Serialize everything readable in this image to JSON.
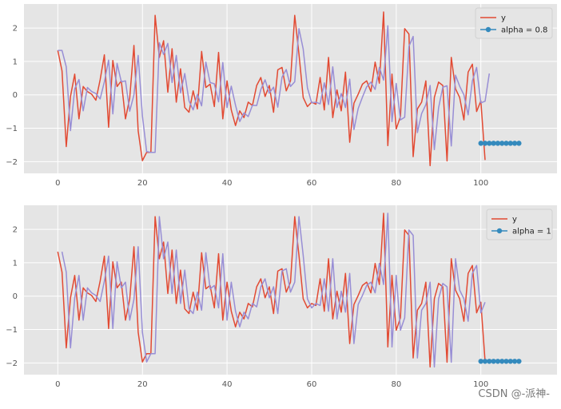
{
  "chart_data": [
    {
      "type": "line",
      "xlim": [
        -8,
        118
      ],
      "ylim": [
        -2.35,
        2.72
      ],
      "xticks": [
        0,
        20,
        40,
        60,
        80,
        100
      ],
      "yticks": [
        -2,
        -1,
        0,
        1,
        2
      ],
      "grid": true,
      "legend_position": "top-right",
      "series": [
        {
          "name": "y",
          "color": "#e24a33",
          "x_start": 0,
          "values": [
            1.33,
            0.72,
            -1.55,
            -0.05,
            0.62,
            -0.72,
            0.25,
            0.1,
            0.02,
            -0.16,
            0.45,
            1.2,
            -0.97,
            1.03,
            0.25,
            0.42,
            -0.72,
            -0.1,
            1.48,
            -1.08,
            -1.97,
            -1.72,
            -1.72,
            2.38,
            1.12,
            1.62,
            0.08,
            1.38,
            -0.22,
            0.78,
            -0.38,
            -0.52,
            0.12,
            -0.42,
            1.3,
            0.22,
            0.32,
            -0.35,
            1.27,
            -0.72,
            0.42,
            -0.45,
            -0.92,
            -0.48,
            -0.68,
            -0.22,
            -0.32,
            0.28,
            0.52,
            -0.05,
            0.28,
            -0.52,
            0.75,
            0.82,
            0.12,
            0.42,
            2.38,
            1.22,
            -0.08,
            -0.35,
            -0.22,
            -0.28,
            0.52,
            -0.45,
            1.12,
            -0.68,
            0.15,
            -0.48,
            0.68,
            -1.42,
            -0.25,
            0.02,
            0.32,
            0.42,
            0.1,
            0.98,
            0.35,
            2.48,
            -1.52,
            0.62,
            -1.02,
            -0.65,
            1.98,
            1.82,
            -1.85,
            -0.42,
            -0.22,
            0.42,
            -2.12,
            -0.08,
            0.38,
            0.28,
            -1.98,
            1.12,
            0.18,
            -0.08,
            -0.75,
            0.68,
            0.92,
            -0.5,
            -0.18,
            -1.95
          ]
        },
        {
          "name": "",
          "color": "#988ed5",
          "x_start": 0,
          "values": [
            1.33,
            1.33,
            0.84,
            -1.07,
            0.18,
            0.46,
            -0.48,
            0.22,
            0.1,
            0.04,
            -0.12,
            0.39,
            1.04,
            -0.57,
            0.94,
            0.39,
            0.42,
            -0.49,
            0.0,
            1.18,
            -0.63,
            -1.7,
            -1.72,
            -1.72,
            1.56,
            1.21,
            1.54,
            0.37,
            1.18,
            0.06,
            0.64,
            -0.18,
            -0.45,
            0.01,
            -0.33,
            0.98,
            0.37,
            0.33,
            -0.21,
            0.97,
            -0.38,
            0.26,
            -0.31,
            -0.8,
            -0.54,
            -0.65,
            -0.31,
            -0.32,
            0.16,
            0.45,
            0.05,
            0.23,
            -0.37,
            0.53,
            0.76,
            0.25,
            0.39,
            1.98,
            1.37,
            0.21,
            -0.24,
            -0.22,
            -0.27,
            0.36,
            -0.29,
            0.84,
            -0.38,
            0.04,
            -0.38,
            0.47,
            -1.04,
            -0.41,
            -0.07,
            0.24,
            0.38,
            0.16,
            0.82,
            0.44,
            2.07,
            -0.8,
            0.34,
            -0.75,
            -0.67,
            1.45,
            1.75,
            -1.13,
            -0.56,
            -0.29,
            0.28,
            -1.64,
            -0.39,
            0.23,
            0.27,
            -1.53,
            0.59,
            0.26,
            0.0,
            -0.6,
            0.42,
            0.82,
            -0.24,
            -0.19,
            0.64
          ]
        },
        {
          "name": "alpha = 0.8",
          "color": "#348abd",
          "x": [
            100,
            101,
            102,
            103,
            104,
            105,
            106,
            107,
            108,
            109
          ],
          "values": [
            -1.45,
            -1.45,
            -1.45,
            -1.45,
            -1.45,
            -1.45,
            -1.45,
            -1.45,
            -1.45,
            -1.45
          ],
          "marker": "circle"
        }
      ],
      "legend": [
        {
          "label": "y",
          "color": "#e24a33",
          "marker": false
        },
        {
          "label": "alpha = 0.8",
          "color": "#348abd",
          "marker": true
        }
      ]
    },
    {
      "type": "line",
      "xlim": [
        -8,
        118
      ],
      "ylim": [
        -2.35,
        2.72
      ],
      "xticks": [
        0,
        20,
        40,
        60,
        80,
        100
      ],
      "yticks": [
        -2,
        -1,
        0,
        1,
        2
      ],
      "grid": true,
      "legend_position": "top-right",
      "series": [
        {
          "name": "y",
          "color": "#e24a33",
          "x_start": 0,
          "values": [
            1.33,
            0.72,
            -1.55,
            -0.05,
            0.62,
            -0.72,
            0.25,
            0.1,
            0.02,
            -0.16,
            0.45,
            1.2,
            -0.97,
            1.03,
            0.25,
            0.42,
            -0.72,
            -0.1,
            1.48,
            -1.08,
            -1.97,
            -1.72,
            -1.72,
            2.38,
            1.12,
            1.62,
            0.08,
            1.38,
            -0.22,
            0.78,
            -0.38,
            -0.52,
            0.12,
            -0.42,
            1.3,
            0.22,
            0.32,
            -0.35,
            1.27,
            -0.72,
            0.42,
            -0.45,
            -0.92,
            -0.48,
            -0.68,
            -0.22,
            -0.32,
            0.28,
            0.52,
            -0.05,
            0.28,
            -0.52,
            0.75,
            0.82,
            0.12,
            0.42,
            2.38,
            1.22,
            -0.08,
            -0.35,
            -0.22,
            -0.28,
            0.52,
            -0.45,
            1.12,
            -0.68,
            0.15,
            -0.48,
            0.68,
            -1.42,
            -0.25,
            0.02,
            0.32,
            0.42,
            0.1,
            0.98,
            0.35,
            2.48,
            -1.52,
            0.62,
            -1.02,
            -0.65,
            1.98,
            1.82,
            -1.85,
            -0.42,
            -0.22,
            0.42,
            -2.12,
            -0.08,
            0.38,
            0.28,
            -1.98,
            1.12,
            0.18,
            -0.08,
            -0.75,
            0.68,
            0.92,
            -0.5,
            -0.18,
            -1.95
          ]
        },
        {
          "name": "",
          "color": "#988ed5",
          "x_start": 1,
          "values": [
            1.33,
            0.72,
            -1.55,
            -0.05,
            0.62,
            -0.72,
            0.25,
            0.1,
            0.02,
            -0.16,
            0.45,
            1.2,
            -0.97,
            1.03,
            0.25,
            0.42,
            -0.72,
            -0.1,
            1.48,
            -1.08,
            -1.97,
            -1.72,
            -1.72,
            2.38,
            1.12,
            1.62,
            0.08,
            1.38,
            -0.22,
            0.78,
            -0.38,
            -0.52,
            0.12,
            -0.42,
            1.3,
            0.22,
            0.32,
            -0.35,
            1.27,
            -0.72,
            0.42,
            -0.45,
            -0.92,
            -0.48,
            -0.68,
            -0.22,
            -0.32,
            0.28,
            0.52,
            -0.05,
            0.28,
            -0.52,
            0.75,
            0.82,
            0.12,
            0.42,
            2.38,
            1.22,
            -0.08,
            -0.35,
            -0.22,
            -0.28,
            0.52,
            -0.45,
            1.12,
            -0.68,
            0.15,
            -0.48,
            0.68,
            -1.42,
            -0.25,
            0.02,
            0.32,
            0.42,
            0.1,
            0.98,
            0.35,
            2.48,
            -1.52,
            0.62,
            -1.02,
            -0.65,
            1.98,
            1.82,
            -1.85,
            -0.42,
            -0.22,
            0.42,
            -2.12,
            -0.08,
            0.38,
            0.28,
            -1.98,
            1.12,
            0.18,
            -0.08,
            -0.75,
            0.68,
            0.92,
            -0.5,
            -0.18
          ]
        },
        {
          "name": "alpha = 1",
          "color": "#348abd",
          "x": [
            100,
            101,
            102,
            103,
            104,
            105,
            106,
            107,
            108,
            109
          ],
          "values": [
            -1.95,
            -1.95,
            -1.95,
            -1.95,
            -1.95,
            -1.95,
            -1.95,
            -1.95,
            -1.95,
            -1.95
          ],
          "marker": "circle"
        }
      ],
      "legend": [
        {
          "label": "y",
          "color": "#e24a33",
          "marker": false
        },
        {
          "label": "alpha = 1",
          "color": "#348abd",
          "marker": true
        }
      ]
    }
  ],
  "watermark": "CSDN @-派神-"
}
